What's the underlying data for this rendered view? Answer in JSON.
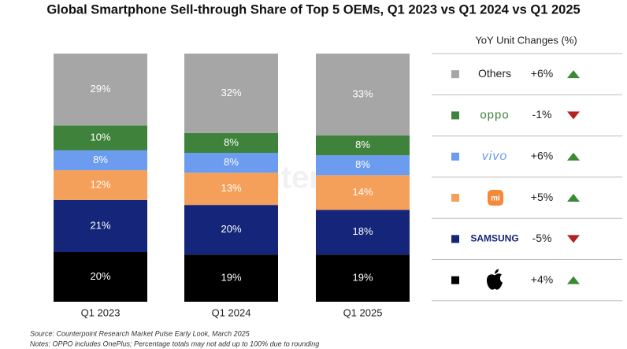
{
  "chart_data": {
    "type": "stacked-bar",
    "title": "Global Smartphone Sell-through Share of Top 5 OEMs, Q1 2023 vs Q1 2024 vs Q1 2025",
    "categories": [
      "Q1 2023",
      "Q1 2024",
      "Q1 2025"
    ],
    "series": [
      {
        "name": null,
        "color": "#000000",
        "values": [
          20,
          19,
          19
        ],
        "value_labels": [
          "20%",
          "19%",
          "19%"
        ],
        "yoy": 4,
        "yoy_label": "+4%"
      },
      {
        "name": "SAMSUNG",
        "color": "#15267a",
        "values": [
          21,
          20,
          18
        ],
        "value_labels": [
          "21%",
          "20%",
          "18%"
        ],
        "yoy": -5,
        "yoy_label": "-5%"
      },
      {
        "name": "mi",
        "color": "#f5a05a",
        "values": [
          12,
          13,
          14
        ],
        "value_labels": [
          "12%",
          "13%",
          "14%"
        ],
        "yoy": 5,
        "yoy_label": "+5%"
      },
      {
        "name": "vivo",
        "color": "#6b9cf0",
        "values": [
          8,
          8,
          8
        ],
        "value_labels": [
          "8%",
          "8%",
          "8%"
        ],
        "yoy": 6,
        "yoy_label": "+6%"
      },
      {
        "name": "oppo",
        "color": "#3f823c",
        "values": [
          10,
          8,
          8
        ],
        "value_labels": [
          "10%",
          "8%",
          "8%"
        ],
        "yoy": -1,
        "yoy_label": "-1%"
      },
      {
        "name": "Others",
        "color": "#a6a6a6",
        "values": [
          29,
          32,
          33
        ],
        "value_labels": [
          "29%",
          "32%",
          "33%"
        ],
        "yoy": 6,
        "yoy_label": "+6%"
      }
    ],
    "legend_title": "YoY Unit Changes (%)",
    "watermark": "Counterpoint",
    "source": "Source: Counterpoint Research Market Pulse Early Look, March 2025",
    "notes": "Notes: OPPO includes OnePlus; Percentage totals may not add up to 100% due to rounding"
  }
}
